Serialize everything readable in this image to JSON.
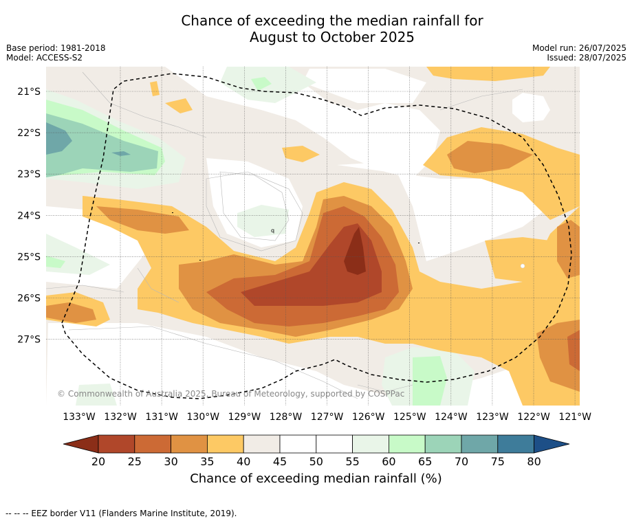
{
  "title_line1": "Chance of exceeding the median rainfall for",
  "title_line2": "August to October 2025",
  "meta_left": [
    "Base period: 1981-2018",
    "Model: ACCESS-S2"
  ],
  "meta_right": [
    "Model run: 26/07/2025",
    "Issued: 28/07/2025"
  ],
  "map": {
    "lat_labels": [
      "21°S",
      "22°S",
      "23°S",
      "24°S",
      "25°S",
      "26°S",
      "27°S"
    ],
    "lon_labels": [
      "133°W",
      "132°W",
      "131°W",
      "130°W",
      "129°W",
      "128°W",
      "127°W",
      "126°W",
      "125°W",
      "124°W",
      "123°W",
      "122°W",
      "121°W"
    ],
    "copyright": "© Commonwealth of Australia 2025, Bureau of Meteorology, supported by COSPPac",
    "stray_label": "q"
  },
  "colorbar": {
    "ticks": [
      "20",
      "25",
      "30",
      "35",
      "40",
      "45",
      "50",
      "55",
      "60",
      "65",
      "70",
      "75",
      "80"
    ],
    "colors": [
      "#8b2e18",
      "#b0472a",
      "#cc6a35",
      "#e09243",
      "#fdc964",
      "#f1ece6",
      "#ffffff",
      "#ffffff",
      "#e9f5e8",
      "#c8fac8",
      "#9cd4b8",
      "#6fa7a8",
      "#3e7c9a",
      "#1d4f87"
    ],
    "label": "Chance of exceeding median rainfall (%)"
  },
  "footnote": "--  --  -- EEZ border V11 (Flanders Marine Institute, 2019)."
}
